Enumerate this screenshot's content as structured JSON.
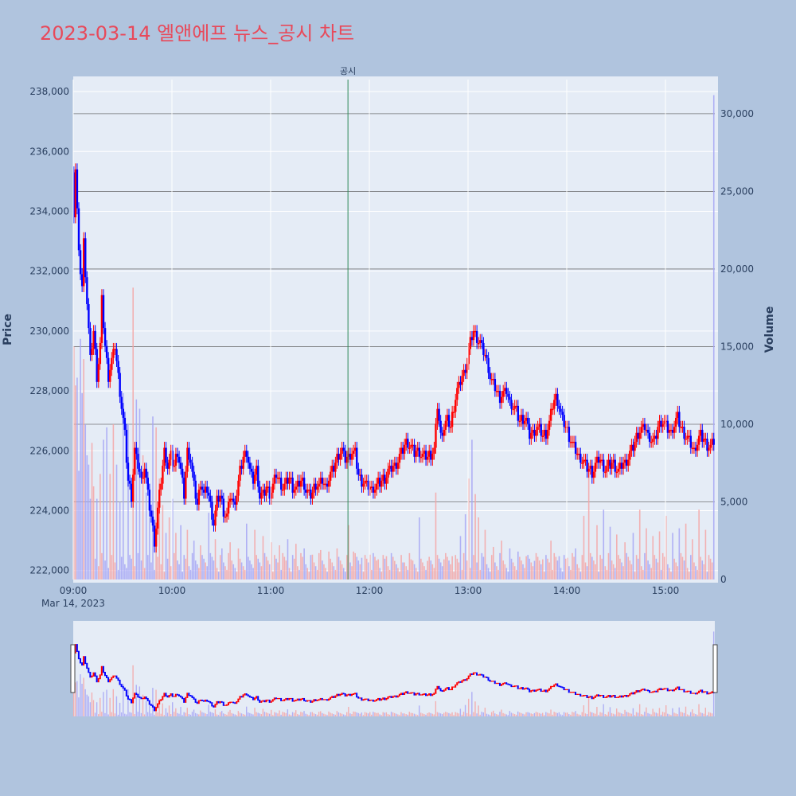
{
  "title": "2023-03-14 엘앤에프 뉴스_공시 차트",
  "colors": {
    "up": "#ff0000",
    "down": "#0000ff",
    "up_volume": "#f4a6a6",
    "down_volume": "#a6a6f4",
    "plot_bg": "#e5ecf6",
    "page_bg": "#b0c4de",
    "annotation_line": "#2e8b57",
    "volume_grid": "#555555"
  },
  "chart_data": {
    "type": "candlestick",
    "xlabel": "",
    "ylabel": "Price",
    "y2label": "Volume",
    "date_label": "Mar 14, 2023",
    "x_tick_labels": [
      "09:00",
      "10:00",
      "11:00",
      "12:00",
      "13:00",
      "14:00",
      "15:00"
    ],
    "x_tick_minutes": [
      0,
      60,
      120,
      180,
      240,
      300,
      360
    ],
    "x_range_minutes": [
      0,
      390
    ],
    "ylim": [
      221700,
      238400
    ],
    "y_ticks": [
      222000,
      224000,
      226000,
      228000,
      230000,
      232000,
      234000,
      236000,
      238000
    ],
    "y_tick_labels": [
      "222,000",
      "224,000",
      "226,000",
      "228,000",
      "230,000",
      "232,000",
      "234,000",
      "236,000",
      "238,000"
    ],
    "y2lim": [
      0,
      32200
    ],
    "y2_ticks": [
      0,
      5000,
      10000,
      15000,
      20000,
      25000,
      30000
    ],
    "y2_tick_labels": [
      "0",
      "5,000",
      "10,000",
      "15,000",
      "20,000",
      "25,000",
      "30,000"
    ],
    "annotation": {
      "text": "공시",
      "minute": 167
    },
    "price_path": [
      [
        0,
        234000
      ],
      [
        1,
        235500
      ],
      [
        3,
        232500
      ],
      [
        5,
        231500
      ],
      [
        6,
        233000
      ],
      [
        8,
        231000
      ],
      [
        10,
        229000
      ],
      [
        12,
        230000
      ],
      [
        14,
        228500
      ],
      [
        16,
        229500
      ],
      [
        17,
        231000
      ],
      [
        19,
        229500
      ],
      [
        21,
        228500
      ],
      [
        23,
        229000
      ],
      [
        25,
        229500
      ],
      [
        27,
        228500
      ],
      [
        29,
        227500
      ],
      [
        31,
        226500
      ],
      [
        33,
        225000
      ],
      [
        35,
        224500
      ],
      [
        37,
        226000
      ],
      [
        39,
        225500
      ],
      [
        41,
        225000
      ],
      [
        43,
        225500
      ],
      [
        45,
        224500
      ],
      [
        47,
        223800
      ],
      [
        49,
        223000
      ],
      [
        51,
        224000
      ],
      [
        53,
        225000
      ],
      [
        55,
        226000
      ],
      [
        57,
        225500
      ],
      [
        59,
        225800
      ],
      [
        61,
        225500
      ],
      [
        63,
        226000
      ],
      [
        65,
        225300
      ],
      [
        67,
        224500
      ],
      [
        69,
        226000
      ],
      [
        71,
        225700
      ],
      [
        73,
        224800
      ],
      [
        75,
        224200
      ],
      [
        77,
        225000
      ],
      [
        79,
        224500
      ],
      [
        81,
        224700
      ],
      [
        83,
        224200
      ],
      [
        85,
        223600
      ],
      [
        87,
        224300
      ],
      [
        89,
        224500
      ],
      [
        91,
        224000
      ],
      [
        93,
        223800
      ],
      [
        95,
        224500
      ],
      [
        97,
        224200
      ],
      [
        99,
        224600
      ],
      [
        101,
        225300
      ],
      [
        103,
        225800
      ],
      [
        105,
        226000
      ],
      [
        107,
        225300
      ],
      [
        109,
        225000
      ],
      [
        111,
        225400
      ],
      [
        113,
        224500
      ],
      [
        115,
        224500
      ],
      [
        117,
        224800
      ],
      [
        119,
        224600
      ],
      [
        121,
        224800
      ],
      [
        123,
        225200
      ],
      [
        125,
        225000
      ],
      [
        127,
        224800
      ],
      [
        129,
        224900
      ],
      [
        131,
        225100
      ],
      [
        133,
        224800
      ],
      [
        135,
        224700
      ],
      [
        137,
        224900
      ],
      [
        139,
        225000
      ],
      [
        141,
        224700
      ],
      [
        143,
        224500
      ],
      [
        145,
        224600
      ],
      [
        147,
        224900
      ],
      [
        149,
        224800
      ],
      [
        151,
        225000
      ],
      [
        153,
        224800
      ],
      [
        155,
        225100
      ],
      [
        157,
        225300
      ],
      [
        159,
        225600
      ],
      [
        161,
        225900
      ],
      [
        163,
        226000
      ],
      [
        165,
        225700
      ],
      [
        167,
        225800
      ],
      [
        169,
        226000
      ],
      [
        171,
        225900
      ],
      [
        173,
        225200
      ],
      [
        175,
        225000
      ],
      [
        177,
        224900
      ],
      [
        179,
        224800
      ],
      [
        181,
        224700
      ],
      [
        183,
        224800
      ],
      [
        185,
        224900
      ],
      [
        187,
        225000
      ],
      [
        189,
        225100
      ],
      [
        191,
        225300
      ],
      [
        193,
        225400
      ],
      [
        195,
        225500
      ],
      [
        197,
        225700
      ],
      [
        199,
        225900
      ],
      [
        201,
        226200
      ],
      [
        203,
        226300
      ],
      [
        205,
        226100
      ],
      [
        207,
        225900
      ],
      [
        209,
        226000
      ],
      [
        211,
        225900
      ],
      [
        213,
        225800
      ],
      [
        215,
        225800
      ],
      [
        217,
        225900
      ],
      [
        219,
        226000
      ],
      [
        221,
        227500
      ],
      [
        223,
        226500
      ],
      [
        225,
        226800
      ],
      [
        227,
        227000
      ],
      [
        229,
        226800
      ],
      [
        231,
        227500
      ],
      [
        233,
        228000
      ],
      [
        235,
        228300
      ],
      [
        237,
        228600
      ],
      [
        239,
        229000
      ],
      [
        241,
        229600
      ],
      [
        243,
        230000
      ],
      [
        245,
        229800
      ],
      [
        247,
        229600
      ],
      [
        249,
        229300
      ],
      [
        251,
        229000
      ],
      [
        253,
        228500
      ],
      [
        255,
        228200
      ],
      [
        257,
        228000
      ],
      [
        259,
        227800
      ],
      [
        261,
        227900
      ],
      [
        263,
        228000
      ],
      [
        265,
        227600
      ],
      [
        267,
        227500
      ],
      [
        269,
        227300
      ],
      [
        271,
        227000
      ],
      [
        273,
        227100
      ],
      [
        275,
        227000
      ],
      [
        277,
        226500
      ],
      [
        279,
        226600
      ],
      [
        281,
        226800
      ],
      [
        283,
        226700
      ],
      [
        285,
        226500
      ],
      [
        287,
        226600
      ],
      [
        289,
        226900
      ],
      [
        291,
        227500
      ],
      [
        293,
        227800
      ],
      [
        295,
        227500
      ],
      [
        297,
        227000
      ],
      [
        299,
        226800
      ],
      [
        301,
        226500
      ],
      [
        303,
        226200
      ],
      [
        305,
        226000
      ],
      [
        307,
        225800
      ],
      [
        309,
        225700
      ],
      [
        311,
        225500
      ],
      [
        313,
        225400
      ],
      [
        315,
        225300
      ],
      [
        317,
        225500
      ],
      [
        319,
        225700
      ],
      [
        321,
        225600
      ],
      [
        323,
        225400
      ],
      [
        325,
        225500
      ],
      [
        327,
        225600
      ],
      [
        329,
        225500
      ],
      [
        331,
        225300
      ],
      [
        333,
        225500
      ],
      [
        335,
        225600
      ],
      [
        337,
        225800
      ],
      [
        339,
        226000
      ],
      [
        341,
        226300
      ],
      [
        343,
        226600
      ],
      [
        345,
        226700
      ],
      [
        347,
        226800
      ],
      [
        349,
        226500
      ],
      [
        351,
        226400
      ],
      [
        353,
        226300
      ],
      [
        355,
        226800
      ],
      [
        357,
        227000
      ],
      [
        359,
        226900
      ],
      [
        361,
        226700
      ],
      [
        363,
        226600
      ],
      [
        365,
        226900
      ],
      [
        367,
        227100
      ],
      [
        369,
        226800
      ],
      [
        371,
        226600
      ],
      [
        373,
        226400
      ],
      [
        375,
        226200
      ],
      [
        377,
        226000
      ],
      [
        379,
        226300
      ],
      [
        381,
        226500
      ],
      [
        383,
        226400
      ],
      [
        385,
        226200
      ],
      [
        387,
        226100
      ],
      [
        389,
        226300
      ]
    ],
    "volume_spikes": [
      [
        0,
        15000
      ],
      [
        1,
        12500
      ],
      [
        2,
        13000
      ],
      [
        3,
        7000
      ],
      [
        4,
        15500
      ],
      [
        5,
        12000
      ],
      [
        6,
        14200
      ],
      [
        7,
        10000
      ],
      [
        8,
        8000
      ],
      [
        9,
        7400
      ],
      [
        10,
        5200
      ],
      [
        11,
        8800
      ],
      [
        12,
        6000
      ],
      [
        14,
        5200
      ],
      [
        16,
        6800
      ],
      [
        18,
        9000
      ],
      [
        20,
        9800
      ],
      [
        22,
        6800
      ],
      [
        24,
        10000
      ],
      [
        26,
        7400
      ],
      [
        28,
        5000
      ],
      [
        30,
        12000
      ],
      [
        33,
        10000
      ],
      [
        36,
        18800
      ],
      [
        38,
        11600
      ],
      [
        40,
        11000
      ],
      [
        42,
        8000
      ],
      [
        44,
        5600
      ],
      [
        46,
        4000
      ],
      [
        48,
        10500
      ],
      [
        50,
        9800
      ],
      [
        52,
        6500
      ],
      [
        54,
        4800
      ],
      [
        56,
        3000
      ],
      [
        58,
        4000
      ],
      [
        60,
        5200
      ],
      [
        62,
        3000
      ],
      [
        65,
        3500
      ],
      [
        69,
        3200
      ],
      [
        73,
        2500
      ],
      [
        77,
        2200
      ],
      [
        82,
        4300
      ],
      [
        86,
        2600
      ],
      [
        90,
        2000
      ],
      [
        95,
        2400
      ],
      [
        100,
        2000
      ],
      [
        105,
        3600
      ],
      [
        110,
        3200
      ],
      [
        115,
        2800
      ],
      [
        120,
        2400
      ],
      [
        125,
        2200
      ],
      [
        130,
        2600
      ],
      [
        135,
        2300
      ],
      [
        140,
        2000
      ],
      [
        145,
        1600
      ],
      [
        150,
        1900
      ],
      [
        155,
        1800
      ],
      [
        160,
        2000
      ],
      [
        167,
        3500
      ],
      [
        170,
        1800
      ],
      [
        175,
        1400
      ],
      [
        180,
        1600
      ],
      [
        185,
        1300
      ],
      [
        190,
        1500
      ],
      [
        195,
        1200
      ],
      [
        200,
        1100
      ],
      [
        205,
        1300
      ],
      [
        210,
        4000
      ],
      [
        215,
        1200
      ],
      [
        220,
        5600
      ],
      [
        225,
        1300
      ],
      [
        230,
        1500
      ],
      [
        235,
        2800
      ],
      [
        238,
        4200
      ],
      [
        240,
        6500
      ],
      [
        242,
        9000
      ],
      [
        244,
        5500
      ],
      [
        246,
        4000
      ],
      [
        250,
        3200
      ],
      [
        255,
        2100
      ],
      [
        260,
        2500
      ],
      [
        265,
        2000
      ],
      [
        270,
        1800
      ],
      [
        275,
        1500
      ],
      [
        280,
        1200
      ],
      [
        285,
        1300
      ],
      [
        290,
        2500
      ],
      [
        295,
        1500
      ],
      [
        300,
        1400
      ],
      [
        305,
        2000
      ],
      [
        310,
        4100
      ],
      [
        313,
        7100
      ],
      [
        318,
        3500
      ],
      [
        322,
        4500
      ],
      [
        326,
        3400
      ],
      [
        330,
        2900
      ],
      [
        335,
        2400
      ],
      [
        340,
        3000
      ],
      [
        344,
        4500
      ],
      [
        348,
        3300
      ],
      [
        352,
        2800
      ],
      [
        356,
        3100
      ],
      [
        360,
        4100
      ],
      [
        364,
        3000
      ],
      [
        368,
        3300
      ],
      [
        372,
        3600
      ],
      [
        376,
        2600
      ],
      [
        380,
        4500
      ],
      [
        384,
        3200
      ],
      [
        389,
        31200
      ]
    ]
  }
}
